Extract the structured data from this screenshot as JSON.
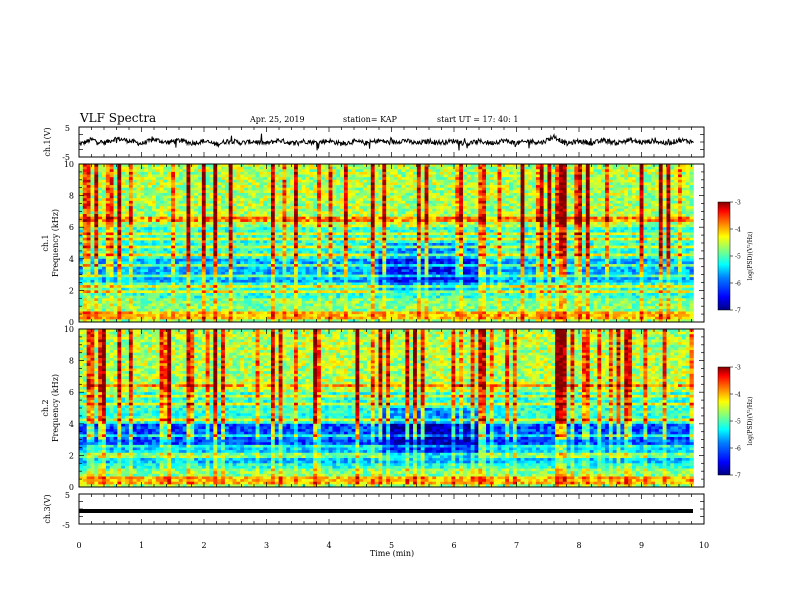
{
  "header": {
    "title": "VLF Spectra",
    "date": "Apr. 25, 2019",
    "station": "station= KAP",
    "start_time": "start  UT =   17: 40: 1"
  },
  "colors": {
    "trace": "#000000",
    "colormap": [
      "#000080",
      "#0000ff",
      "#0080ff",
      "#00ffff",
      "#80ff80",
      "#ffff00",
      "#ff8000",
      "#ff0000",
      "#800000"
    ],
    "background": "#ffffff"
  },
  "chart_data": [
    {
      "type": "line",
      "name": "ch1-waveform",
      "ylabel": "ch.1(V)",
      "xlim": [
        0,
        10
      ],
      "ylim": [
        -5,
        5
      ],
      "yticks": [
        "5",
        "-5"
      ],
      "x_extent": [
        0,
        9.83
      ],
      "series": [
        {
          "values_description": "noisy waveform fluctuating about 0 V, excursions roughly ±3 V"
        }
      ],
      "approx_values": [
        [
          0.0,
          -0.9
        ],
        [
          0.2,
          0.8
        ],
        [
          0.4,
          -0.3
        ],
        [
          0.6,
          1.2
        ],
        [
          0.8,
          0.4
        ],
        [
          1.0,
          -0.6
        ],
        [
          1.2,
          0.9
        ],
        [
          1.4,
          -0.2
        ],
        [
          1.6,
          0.6
        ],
        [
          1.8,
          -0.4
        ],
        [
          2.0,
          0.3
        ],
        [
          2.2,
          -0.8
        ],
        [
          2.4,
          0.5
        ],
        [
          2.6,
          -0.3
        ],
        [
          2.8,
          0.2
        ],
        [
          3.0,
          -0.5
        ],
        [
          3.2,
          0.6
        ],
        [
          3.4,
          -0.4
        ],
        [
          3.6,
          0.3
        ],
        [
          3.8,
          -0.2
        ],
        [
          4.0,
          0.4
        ],
        [
          4.2,
          -0.6
        ],
        [
          4.4,
          0.2
        ],
        [
          4.6,
          -0.4
        ],
        [
          4.8,
          0.5
        ],
        [
          5.0,
          -0.3
        ],
        [
          5.2,
          0.6
        ],
        [
          5.4,
          -0.5
        ],
        [
          5.6,
          0.3
        ],
        [
          5.8,
          -0.2
        ],
        [
          6.0,
          0.4
        ],
        [
          6.2,
          -0.6
        ],
        [
          6.4,
          0.2
        ],
        [
          6.6,
          -0.3
        ],
        [
          6.8,
          0.5
        ],
        [
          7.0,
          -0.4
        ],
        [
          7.2,
          0.3
        ],
        [
          7.4,
          -0.2
        ],
        [
          7.6,
          1.8
        ],
        [
          7.8,
          -0.6
        ],
        [
          8.0,
          0.3
        ],
        [
          8.2,
          -0.4
        ],
        [
          8.4,
          0.5
        ],
        [
          8.6,
          -0.3
        ],
        [
          8.8,
          0.6
        ],
        [
          9.0,
          -0.2
        ],
        [
          9.2,
          0.4
        ],
        [
          9.4,
          -0.5
        ],
        [
          9.6,
          0.6
        ],
        [
          9.83,
          0.1
        ]
      ]
    },
    {
      "type": "heatmap",
      "name": "ch1-spectrogram",
      "ylabel": "ch.1\nFrequency  (kHz)",
      "xlim": [
        0,
        10
      ],
      "ylim": [
        0,
        10
      ],
      "yticks": [
        "0",
        "2",
        "4",
        "6",
        "8",
        "10"
      ],
      "colorbar": {
        "label": "log(PSD)(V²/Hz)",
        "range": [
          -7,
          -3
        ],
        "ticks": [
          "-3",
          "-4",
          "-5",
          "-6",
          "-7"
        ]
      },
      "description": "broadband impulsive noise (vertical streaks) with horizontal lines near 0.2-0.6, 1.9, 2.3, 2.9, 3.6, 4.2, 4.7, 5.2, 6.5 kHz; quieter region 4.8-6.4 min between 2.5-5 kHz"
    },
    {
      "type": "heatmap",
      "name": "ch2-spectrogram",
      "ylabel": "ch.2\nFrequency  (kHz)",
      "xlim": [
        0,
        10
      ],
      "ylim": [
        0,
        10
      ],
      "yticks": [
        "0",
        "2",
        "4",
        "6",
        "8",
        "10"
      ],
      "colorbar": {
        "label": "log(PSD)(V²/Hz)",
        "range": [
          -7,
          -3
        ],
        "ticks": [
          "-3",
          "-4",
          "-5",
          "-6",
          "-7"
        ]
      },
      "description": "similar to ch.1, with bands near 4.2, 5.2, 6.4 kHz and low-intensity (blue) region 4.8-6.4 min between 1.5-4 kHz"
    },
    {
      "type": "line",
      "name": "ch3-waveform",
      "ylabel": "ch.3(V)",
      "xlabel": "Time  (min)",
      "xlim": [
        0,
        10
      ],
      "ylim": [
        -5,
        5
      ],
      "yticks": [
        "5",
        "-5"
      ],
      "xticks": [
        "0",
        "1",
        "2",
        "3",
        "4",
        "5",
        "6",
        "7",
        "8",
        "9",
        "10"
      ],
      "series": [
        {
          "values": [
            [
              0,
              -1.0
            ],
            [
              9.83,
              -1.0
            ]
          ]
        }
      ]
    }
  ]
}
